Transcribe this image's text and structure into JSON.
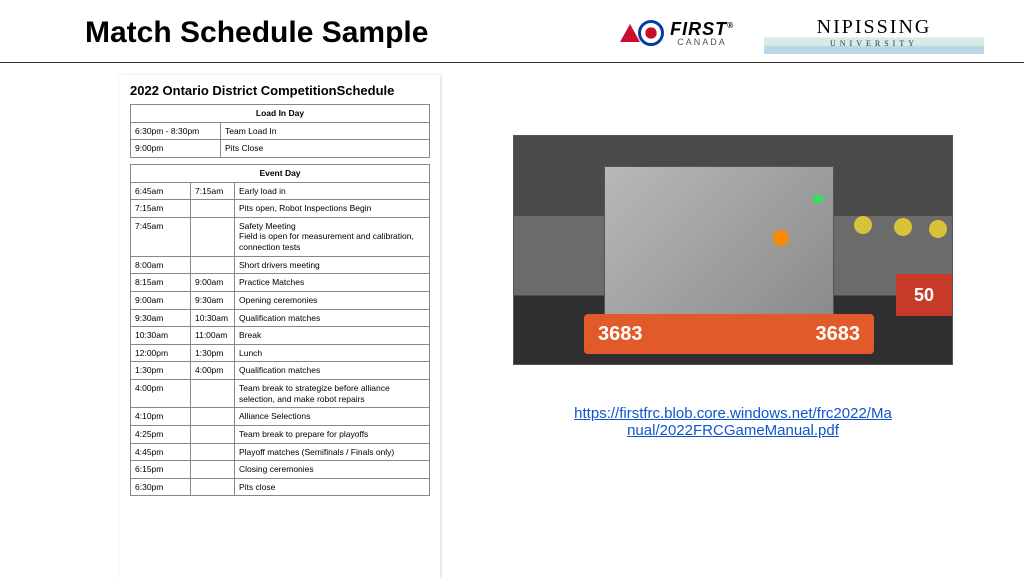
{
  "header": {
    "title": "Match Schedule Sample",
    "first_logo": {
      "word": "FIRST",
      "reg": "®",
      "subtitle": "CANADA"
    },
    "nipissing_logo": {
      "word": "NIPISSING",
      "subtitle": "UNIVERSITY"
    }
  },
  "schedule": {
    "title": "2022 Ontario District CompetitionSchedule",
    "load_in": {
      "header": "Load In Day",
      "rows": [
        {
          "start": "6:30pm - 8:30pm",
          "end": "",
          "desc": "Team Load In"
        },
        {
          "start": "9:00pm",
          "end": "",
          "desc": "Pits Close"
        }
      ]
    },
    "event_day": {
      "header": "Event Day",
      "rows": [
        {
          "start": "6:45am",
          "end": "7:15am",
          "desc": "Early load in"
        },
        {
          "start": "7:15am",
          "end": "",
          "desc": "Pits open, Robot Inspections Begin"
        },
        {
          "start": "7:45am",
          "end": "",
          "desc": "Safety Meeting\nField is open for measurement and calibration, connection tests"
        },
        {
          "start": "8:00am",
          "end": "",
          "desc": "Short drivers meeting"
        },
        {
          "start": "8:15am",
          "end": "9:00am",
          "desc": "Practice Matches"
        },
        {
          "start": "9:00am",
          "end": "9:30am",
          "desc": "Opening ceremonies"
        },
        {
          "start": "9:30am",
          "end": "10:30am",
          "desc": "Qualification matches"
        },
        {
          "start": "10:30am",
          "end": "11:00am",
          "desc": "Break"
        },
        {
          "start": "12:00pm",
          "end": "1:30pm",
          "desc": "Lunch"
        },
        {
          "start": "1:30pm",
          "end": "4:00pm",
          "desc": "Qualification matches"
        },
        {
          "start": "4:00pm",
          "end": "",
          "desc": "Team break to strategize before alliance selection, and make robot repairs"
        },
        {
          "start": "4:10pm",
          "end": "",
          "desc": "Alliance Selections"
        },
        {
          "start": "4:25pm",
          "end": "",
          "desc": "Team break to prepare for playoffs"
        },
        {
          "start": "4:45pm",
          "end": "",
          "desc": "Playoff matches (Semifinals / Finals only)"
        },
        {
          "start": "6:15pm",
          "end": "",
          "desc": "Closing ceremonies"
        },
        {
          "start": "6:30pm",
          "end": "",
          "desc": "Pits close"
        }
      ]
    }
  },
  "robot": {
    "bumper_left": "3683",
    "bumper_right": "3683",
    "other_bumper": "50"
  },
  "link": {
    "line1": "https://firstfrc.blob.core.windows.net/frc2022/Ma",
    "line2": "nual/2022FRCGameManual.pdf",
    "href": "https://firstfrc.blob.core.windows.net/frc2022/Manual/2022FRCGameManual.pdf"
  },
  "style": {
    "title_fontsize": 30,
    "link_color": "#1155cc",
    "bumper_color": "#e35a2a",
    "table_border": "#888"
  }
}
